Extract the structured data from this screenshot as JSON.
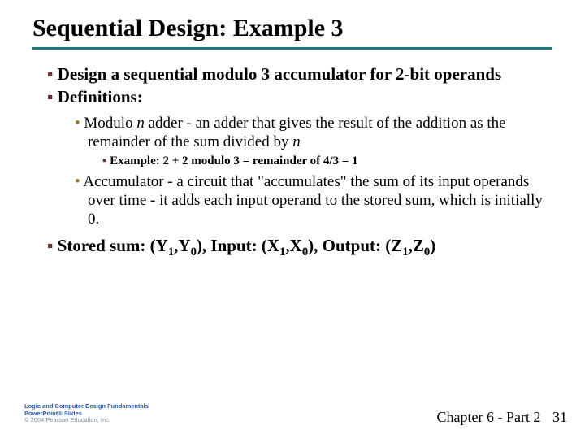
{
  "title": "Sequential Design: Example 3",
  "rule_color": "#1e7b7b",
  "lvl1_bullet_color": "#6b2f2f",
  "lvl2_bullet_color": "#9a7a1f",
  "bullets": {
    "b1": "Design a sequential modulo 3 accumulator for 2-bit operands",
    "b2": "Definitions:",
    "b3_pre": "Modulo ",
    "b3_n1": "n",
    "b3_mid": " adder - an adder that gives the result of the addition as the remainder of the sum divided by ",
    "b3_n2": "n",
    "b4": "Example: 2 + 2 modulo 3 = remainder of 4/3 = 1",
    "b5": "Accumulator - a circuit that \"accumulates\" the sum of its input operands over time - it adds each input operand to the stored sum, which is initially 0.",
    "b6_pre": "Stored sum: (Y",
    "b6_s1": "1",
    "b6_m1": ",Y",
    "b6_s2": "0",
    "b6_m2": "), Input: (X",
    "b6_s3": "1",
    "b6_m3": ",X",
    "b6_s4": "0",
    "b6_m4": "), Output: (Z",
    "b6_s5": "1",
    "b6_m5": ",Z",
    "b6_s6": "0",
    "b6_end": ")"
  },
  "footer": {
    "line1": "Logic and Computer Design Fundamentals",
    "line2": "PowerPoint® Slides",
    "line3": "© 2004 Pearson Education, Inc.",
    "chapter": "Chapter 6 - Part 2",
    "page": "31"
  }
}
